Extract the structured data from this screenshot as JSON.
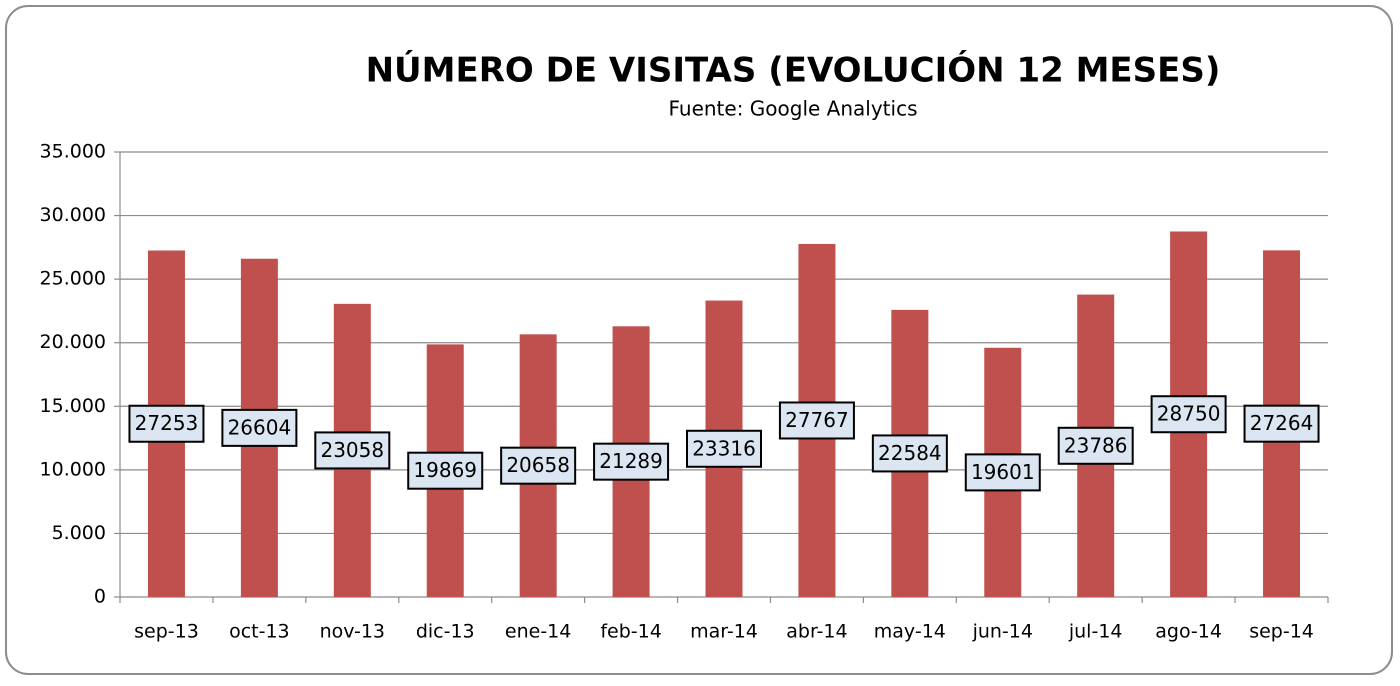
{
  "chart_data": {
    "type": "bar",
    "title": "NÚMERO DE VISITAS  (EVOLUCIÓN 12 MESES)",
    "subtitle": "Fuente: Google Analytics",
    "categories": [
      "sep-13",
      "oct-13",
      "nov-13",
      "dic-13",
      "ene-14",
      "feb-14",
      "mar-14",
      "abr-14",
      "may-14",
      "jun-14",
      "jul-14",
      "ago-14",
      "sep-14"
    ],
    "values": [
      27253,
      26604,
      23058,
      19869,
      20658,
      21289,
      23316,
      27767,
      22584,
      19601,
      23786,
      28750,
      27264
    ],
    "color": "#c0504d",
    "ylim": [
      0,
      35000
    ],
    "yticks": [
      0,
      {
        "value": 5000,
        "label": "5.000"
      },
      {
        "value": 10000,
        "label": "10.000"
      },
      {
        "value": 15000,
        "label": "15.000"
      },
      {
        "value": 20000,
        "label": "20.000"
      },
      {
        "value": 25000,
        "label": "25.000"
      },
      {
        "value": 30000,
        "label": "30.000"
      },
      {
        "value": 35000,
        "label": "35.000"
      }
    ],
    "grid": true
  }
}
